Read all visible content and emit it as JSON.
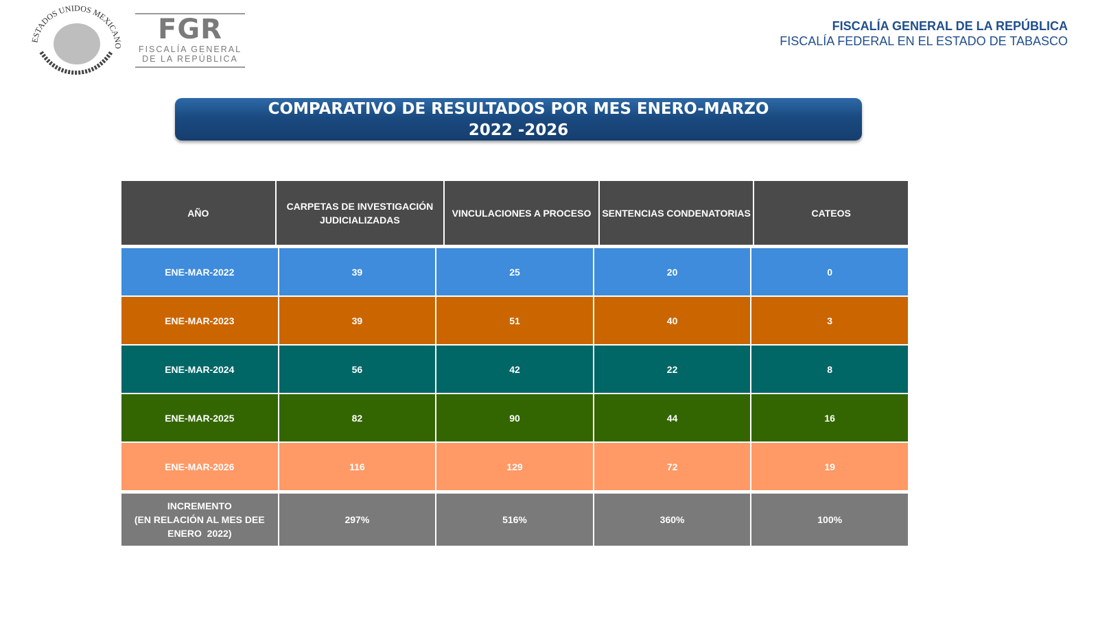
{
  "logo": {
    "seal_text": "ESTADOS UNIDOS MEXICANOS",
    "brand": "FGR",
    "brand_line1": "FISCALÍA GENERAL",
    "brand_line2": "DE LA REPÚBLICA"
  },
  "header": {
    "line1": "FISCALÍA GENERAL DE LA REPÚBLICA",
    "line2": "FISCALÍA FEDERAL EN EL ESTADO DE TABASCO"
  },
  "title": {
    "line1": "COMPARATIVO DE RESULTADOS POR MES ENERO-MARZO",
    "line2": "2022 -2026"
  },
  "table": {
    "headers": [
      "AÑO",
      "CARPETAS DE INVESTIGACIÓN JUDICIALIZADAS",
      "VINCULACIONES A PROCESO",
      "SENTENCIAS CONDENATORIAS",
      "CATEOS"
    ],
    "rows": [
      [
        "ENE-MAR-2022",
        "39",
        "25",
        "20",
        "0"
      ],
      [
        "ENE-MAR-2023",
        "39",
        "51",
        "40",
        "3"
      ],
      [
        "ENE-MAR-2024",
        "56",
        "42",
        "22",
        "8"
      ],
      [
        "ENE-MAR-2025",
        "82",
        "90",
        "44",
        "16"
      ],
      [
        "ENE-MAR-2026",
        "116",
        "129",
        "72",
        "19"
      ]
    ],
    "row_colors": [
      "#3e8cdb",
      "#cb6500",
      "#006666",
      "#336600",
      "#ff9966"
    ],
    "increment": {
      "label_line1": "INCREMENTO",
      "label_line2": "(EN RELACIÓN AL MES DEE",
      "label_line3": "ENERO  2022)",
      "values": [
        "297%",
        "516%",
        "360%",
        "100%"
      ]
    }
  }
}
